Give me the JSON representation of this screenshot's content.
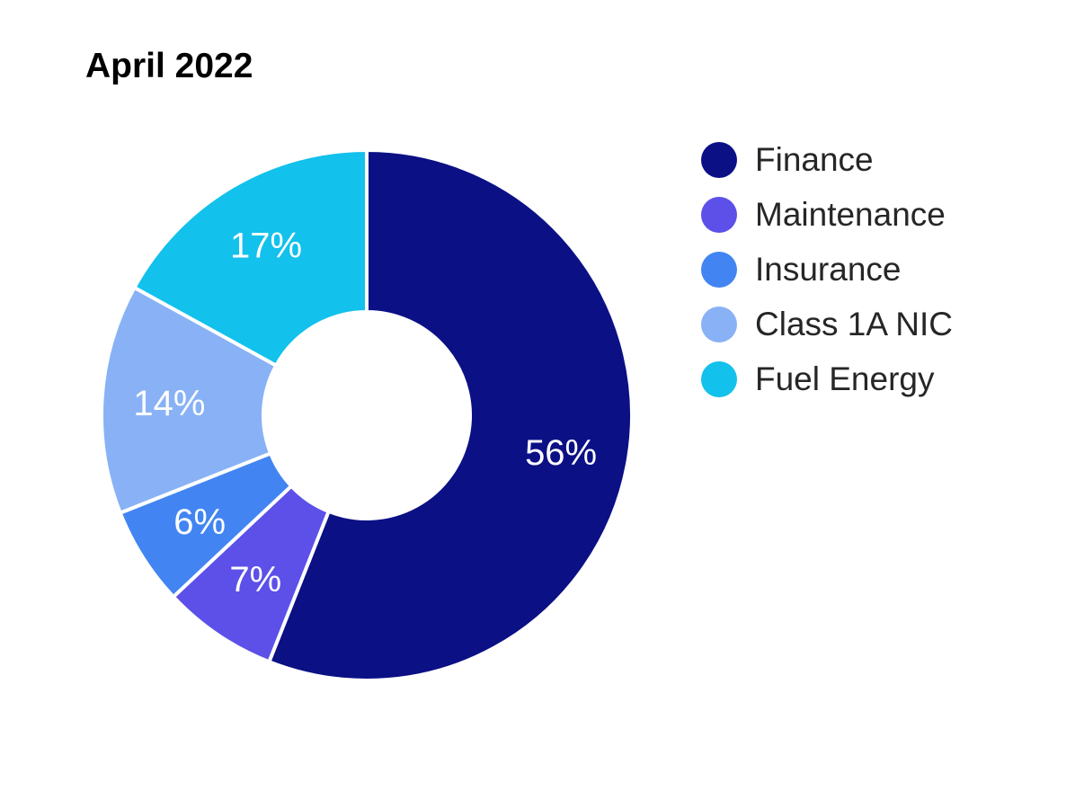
{
  "title": "April 2022",
  "chart_data": {
    "type": "pie",
    "subtype": "donut",
    "title": "April 2022",
    "categories": [
      "Finance",
      "Maintenance",
      "Insurance",
      "Class 1A NIC",
      "Fuel Energy"
    ],
    "values": [
      56,
      7,
      6,
      14,
      17
    ],
    "labels": [
      "56%",
      "7%",
      "6%",
      "14%",
      "17%"
    ],
    "colors": [
      "#0B1085",
      "#5C50E9",
      "#4285F2",
      "#88B2F5",
      "#12C1EC"
    ],
    "label_color": "#FFFFFF",
    "slice_border_color": "#FFFFFF",
    "slice_border_width": 4,
    "start_angle_deg": 0,
    "direction": "clockwise",
    "inner_radius_ratio": 0.39,
    "legend_position": "right"
  }
}
